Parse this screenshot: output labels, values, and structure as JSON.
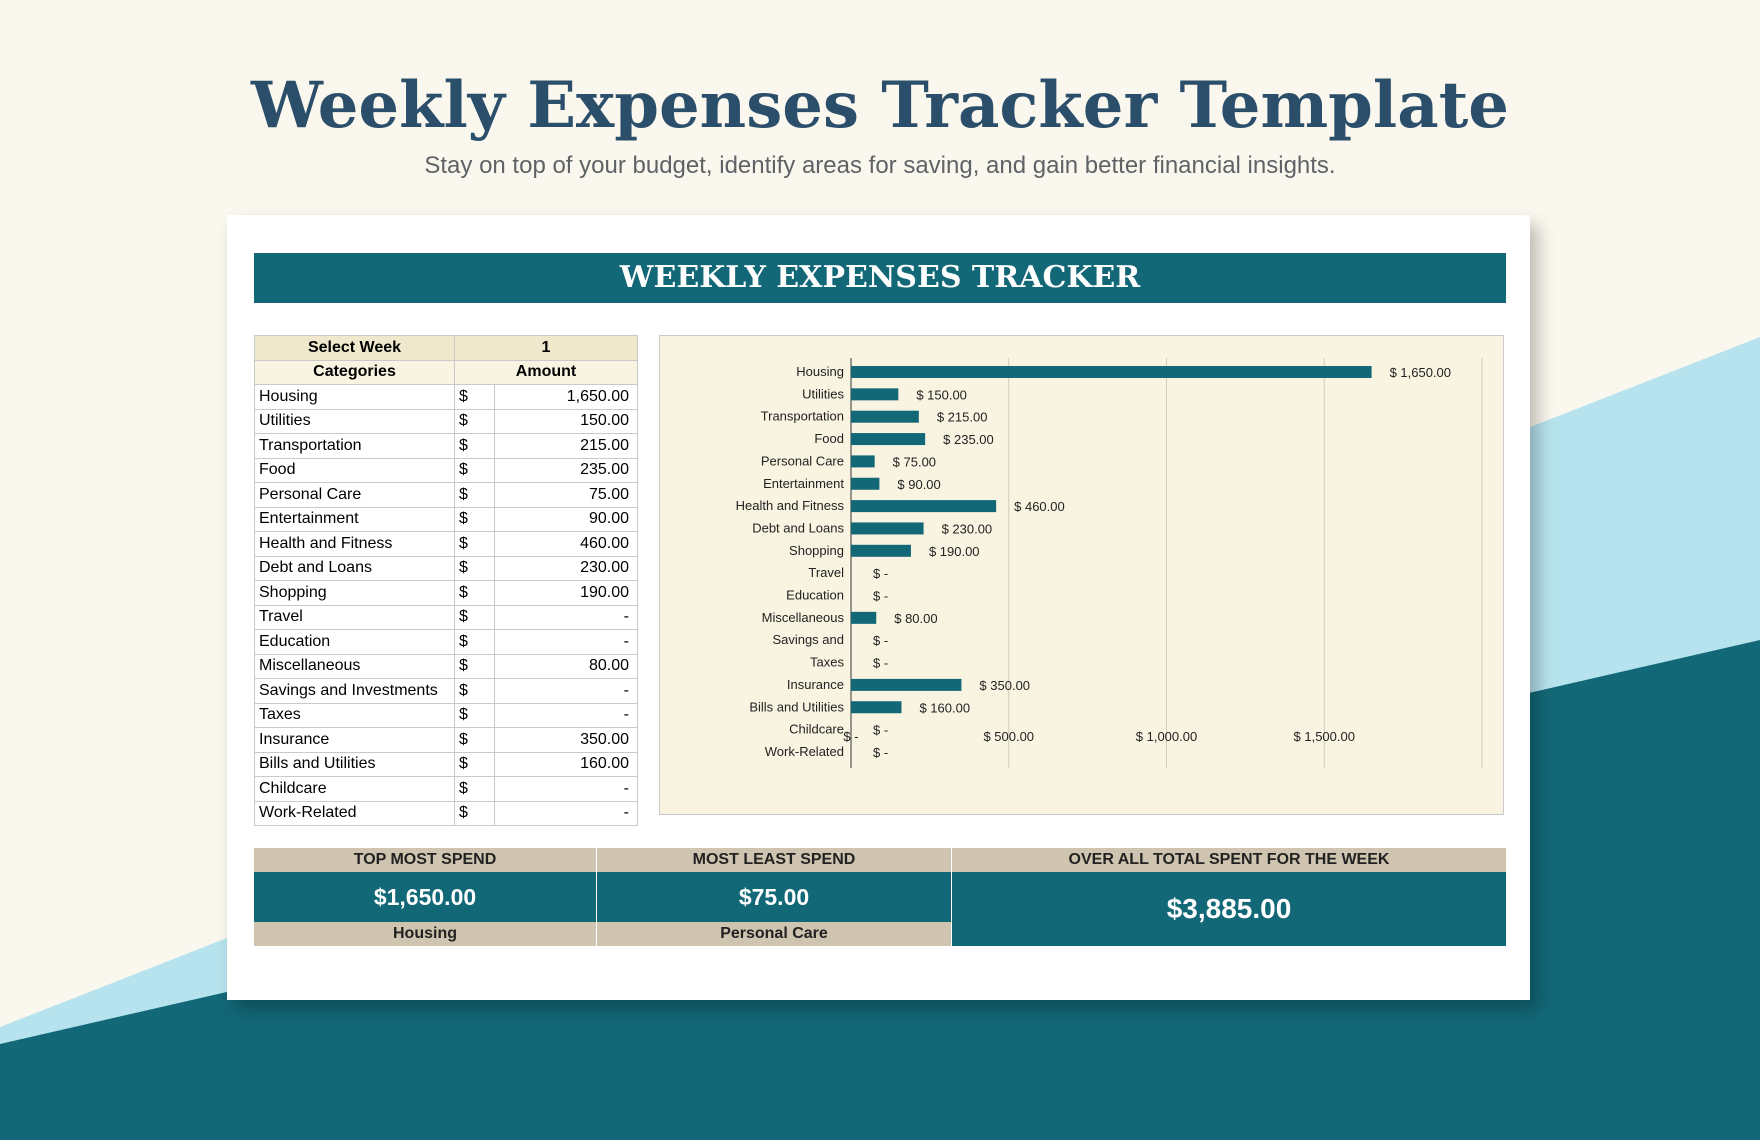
{
  "page": {
    "title": "Weekly Expenses Tracker Template",
    "subtitle": "Stay on top of your budget, identify areas for saving, and gain better financial insights."
  },
  "tracker": {
    "heading": "WEEKLY EXPENSES TRACKER",
    "select_week_label": "Select Week",
    "select_week_value": "1",
    "col_categories": "Categories",
    "col_amount": "Amount",
    "currency": "$",
    "rows": [
      {
        "category": "Housing",
        "amount": "1,650.00"
      },
      {
        "category": "Utilities",
        "amount": "150.00"
      },
      {
        "category": "Transportation",
        "amount": "215.00"
      },
      {
        "category": "Food",
        "amount": "235.00"
      },
      {
        "category": "Personal Care",
        "amount": "75.00"
      },
      {
        "category": "Entertainment",
        "amount": "90.00"
      },
      {
        "category": "Health and Fitness",
        "amount": "460.00"
      },
      {
        "category": "Debt and Loans",
        "amount": "230.00"
      },
      {
        "category": "Shopping",
        "amount": "190.00"
      },
      {
        "category": "Travel",
        "amount": "-"
      },
      {
        "category": "Education",
        "amount": "-"
      },
      {
        "category": "Miscellaneous",
        "amount": "80.00"
      },
      {
        "category": "Savings and Investments",
        "amount": "-"
      },
      {
        "category": "Taxes",
        "amount": "-"
      },
      {
        "category": "Insurance",
        "amount": "350.00"
      },
      {
        "category": "Bills and Utilities",
        "amount": "160.00"
      },
      {
        "category": "Childcare",
        "amount": "-"
      },
      {
        "category": "Work-Related",
        "amount": "-"
      }
    ]
  },
  "summary": {
    "top_label": "TOP MOST SPEND",
    "top_value": "$1,650.00",
    "top_category": "Housing",
    "least_label": "MOST LEAST SPEND",
    "least_value": "$75.00",
    "least_category": "Personal Care",
    "total_label": "OVER ALL TOTAL SPENT FOR THE WEEK",
    "total_value": "$3,885.00"
  },
  "colors": {
    "accent": "#136878",
    "chart_bg": "#f8f4e1",
    "header_bg": "#efe8cc",
    "summary_label_bg": "#cfc4b0"
  },
  "chart_data": {
    "type": "bar",
    "orientation": "horizontal",
    "categories": [
      "Housing",
      "Utilities",
      "Transportation",
      "Food",
      "Personal Care",
      "Entertainment",
      "Health and Fitness",
      "Debt and Loans",
      "Shopping",
      "Travel",
      "Education",
      "Miscellaneous",
      "Savings and",
      "Taxes",
      "Insurance",
      "Bills and Utilities",
      "Childcare",
      "Work-Related"
    ],
    "values": [
      1650,
      150,
      215,
      235,
      75,
      90,
      460,
      230,
      190,
      0,
      0,
      80,
      0,
      0,
      350,
      160,
      0,
      0
    ],
    "data_labels": [
      "$ 1,650.00",
      "$ 150.00",
      "$ 215.00",
      "$ 235.00",
      "$ 75.00",
      "$ 90.00",
      "$ 460.00",
      "$ 230.00",
      "$ 190.00",
      "$ -",
      "$ -",
      "$ 80.00",
      "$ -",
      "$ -",
      "$ 350.00",
      "$ 160.00",
      "$ -",
      "$ -"
    ],
    "xlim": [
      0,
      2000
    ],
    "x_ticks": [
      0,
      500,
      1000,
      1500
    ],
    "x_tick_labels": [
      "$ -",
      "$ 500.00",
      "$ 1,000.00",
      "$ 1,500.00"
    ],
    "grid": true,
    "legend": "none",
    "color": "#136878"
  }
}
